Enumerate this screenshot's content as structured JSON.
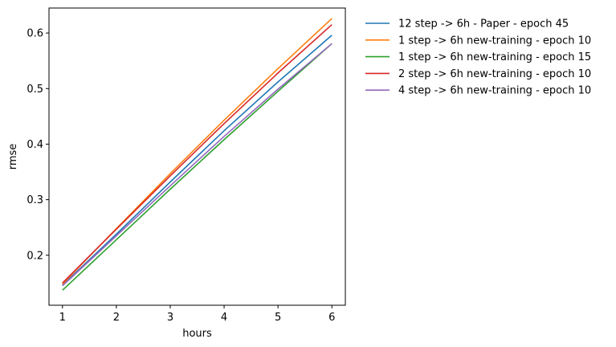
{
  "chart_data": {
    "type": "line",
    "title": "",
    "xlabel": "hours",
    "ylabel": "rmse",
    "xlim": [
      0.75,
      6.25
    ],
    "ylim": [
      0.11,
      0.645
    ],
    "xticks": [
      1,
      2,
      3,
      4,
      5,
      6
    ],
    "yticks": [
      0.2,
      0.3,
      0.4,
      0.5,
      0.6
    ],
    "xtick_labels": [
      "1",
      "2",
      "3",
      "4",
      "5",
      "6"
    ],
    "ytick_labels": [
      "0.2",
      "0.3",
      "0.4",
      "0.5",
      "0.6"
    ],
    "grid": false,
    "legend_position": "outside-right-top",
    "x": [
      1,
      2,
      3,
      4,
      5,
      6
    ],
    "series": [
      {
        "name": "12 step -> 6h - Paper - epoch 45",
        "color": "#1f77b4",
        "values": [
          0.146,
          0.238,
          0.332,
          0.424,
          0.512,
          0.596
        ]
      },
      {
        "name": "1 step -> 6h new-training - epoch 10",
        "color": "#ff7f0e",
        "values": [
          0.148,
          0.248,
          0.347,
          0.443,
          0.536,
          0.626
        ]
      },
      {
        "name": "1 step -> 6h new-training - epoch 15",
        "color": "#2ca02c",
        "values": [
          0.137,
          0.228,
          0.319,
          0.408,
          0.495,
          0.581
        ]
      },
      {
        "name": "2 step -> 6h new-training - epoch 10",
        "color": "#d62728",
        "values": [
          0.15,
          0.247,
          0.343,
          0.437,
          0.528,
          0.615
        ]
      },
      {
        "name": "4 step -> 6h new-training - epoch 10",
        "color": "#9467bd",
        "values": [
          0.145,
          0.235,
          0.325,
          0.414,
          0.499,
          0.581
        ]
      }
    ]
  }
}
